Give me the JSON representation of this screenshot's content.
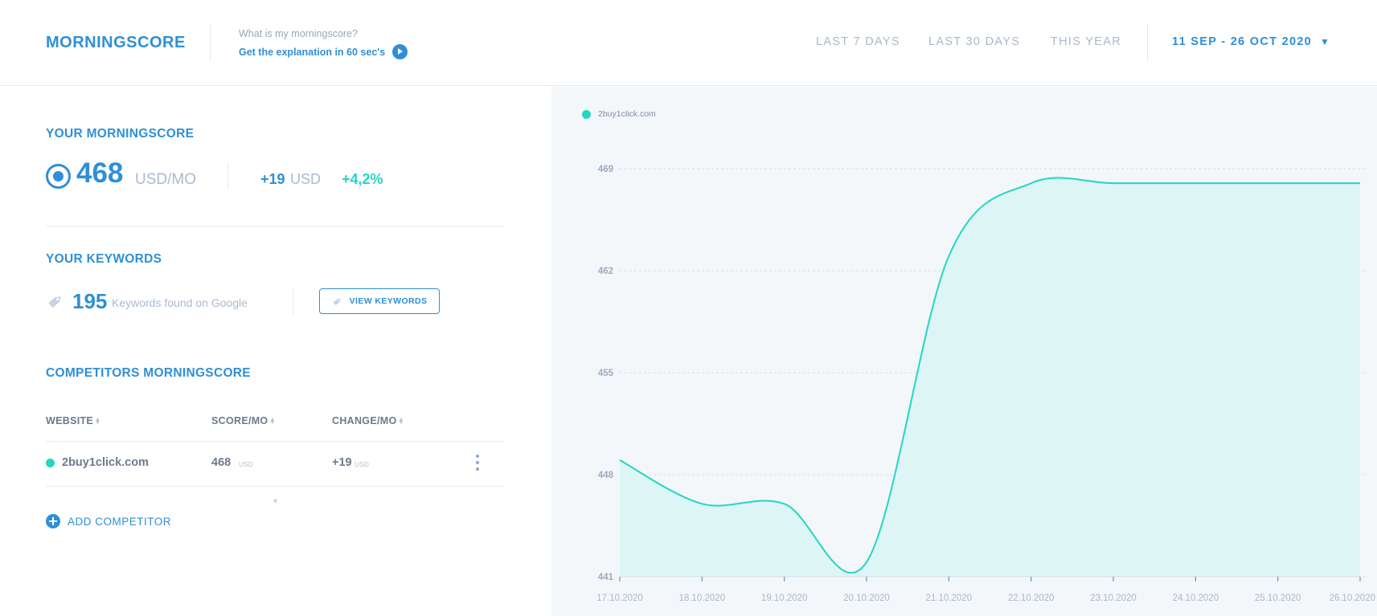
{
  "header": {
    "brand": "MORNINGSCORE",
    "explain_question": "What is my morningscore?",
    "explain_link": "Get the explanation in 60 sec's",
    "ranges": [
      "LAST 7 DAYS",
      "LAST 30 DAYS",
      "THIS YEAR"
    ],
    "date_range": "11 SEP - 26 OCT 2020"
  },
  "score": {
    "title": "YOUR MORNINGSCORE",
    "value": "468",
    "unit": "USD/MO",
    "delta": "+19",
    "delta_unit": "USD",
    "delta_pct": "+4,2%"
  },
  "keywords": {
    "title": "YOUR KEYWORDS",
    "count": "195",
    "label": "Keywords found on Google",
    "button": "VIEW KEYWORDS"
  },
  "competitors": {
    "title": "COMPETITORS MORNINGSCORE",
    "columns": [
      "WEBSITE",
      "SCORE/MO",
      "CHANGE/MO"
    ],
    "rows": [
      {
        "website": "2buy1click.com",
        "score": "468",
        "score_unit": "USD",
        "change": "+19",
        "change_unit": "USD"
      }
    ],
    "add_label": "ADD COMPETITOR"
  },
  "colors": {
    "accent": "#2f8fd6",
    "teal": "#22d6c4",
    "muted": "#a9bad0"
  },
  "chart_data": {
    "type": "area",
    "series": [
      {
        "name": "2buy1click.com",
        "color": "#22d6c4",
        "x": [
          "17.10.2020",
          "18.10.2020",
          "19.10.2020",
          "20.10.2020",
          "21.10.2020",
          "22.10.2020",
          "23.10.2020",
          "24.10.2020",
          "25.10.2020",
          "26.10.2020"
        ],
        "values": [
          449,
          446,
          446,
          442,
          463,
          468,
          468,
          468,
          468,
          468
        ]
      }
    ],
    "y_ticks": [
      441,
      448,
      455,
      462,
      469
    ],
    "ylim": [
      441,
      469
    ],
    "grid": true,
    "legend": "top-left"
  }
}
